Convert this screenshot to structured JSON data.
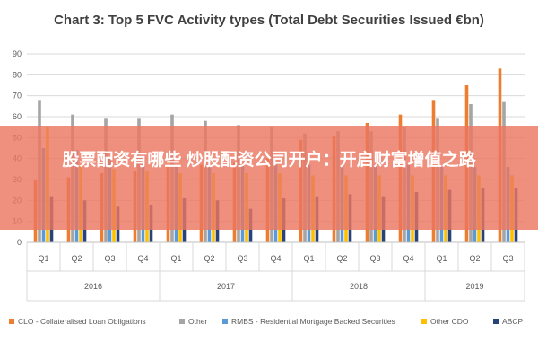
{
  "chart_data": {
    "type": "bar",
    "title": "Chart 3: Top 5 FVC Activity types (Total Debt Securities Issued €bn)",
    "ylim": [
      0,
      90
    ],
    "yticks": [
      0,
      10,
      20,
      30,
      40,
      50,
      60,
      70,
      80,
      90
    ],
    "grid": true,
    "legend_position": "bottom",
    "categories": [
      "Q1",
      "Q2",
      "Q3",
      "Q4",
      "Q1",
      "Q2",
      "Q3",
      "Q4",
      "Q1",
      "Q2",
      "Q3",
      "Q4",
      "Q1",
      "Q2",
      "Q3"
    ],
    "groups": [
      {
        "label": "2016",
        "count": 4
      },
      {
        "label": "2017",
        "count": 4
      },
      {
        "label": "2018",
        "count": 4
      },
      {
        "label": "2019",
        "count": 3
      }
    ],
    "series": [
      {
        "name": "CLO - Collateralised Loan Obligations",
        "color": "#ED7D31",
        "values": [
          30,
          31,
          33,
          34,
          36,
          37,
          38,
          40,
          49,
          51,
          57,
          61,
          68,
          75,
          83
        ]
      },
      {
        "name": "Other",
        "color": "#A5A5A5",
        "values": [
          68,
          61,
          59,
          59,
          61,
          58,
          56,
          55,
          52,
          53,
          53,
          55,
          59,
          66,
          67
        ]
      },
      {
        "name": "RMBS - Residential Mortgage Backed Securities",
        "color": "#5B9BD5",
        "values": [
          45,
          44,
          40,
          38,
          37,
          37,
          37,
          37,
          37,
          37,
          37,
          37,
          36,
          36,
          36
        ]
      },
      {
        "name": "Other CDO",
        "color": "#FFC000",
        "values": [
          55,
          37,
          35,
          34,
          33,
          33,
          33,
          33,
          32,
          32,
          32,
          32,
          32,
          32,
          32
        ]
      },
      {
        "name": "ABCP",
        "color": "#264478",
        "values": [
          22,
          20,
          17,
          18,
          21,
          20,
          16,
          21,
          22,
          23,
          22,
          24,
          25,
          26,
          26
        ]
      }
    ]
  },
  "overlay": {
    "banner_text": "股票配资有哪些 炒股配资公司开户：开启财富增值之路"
  }
}
